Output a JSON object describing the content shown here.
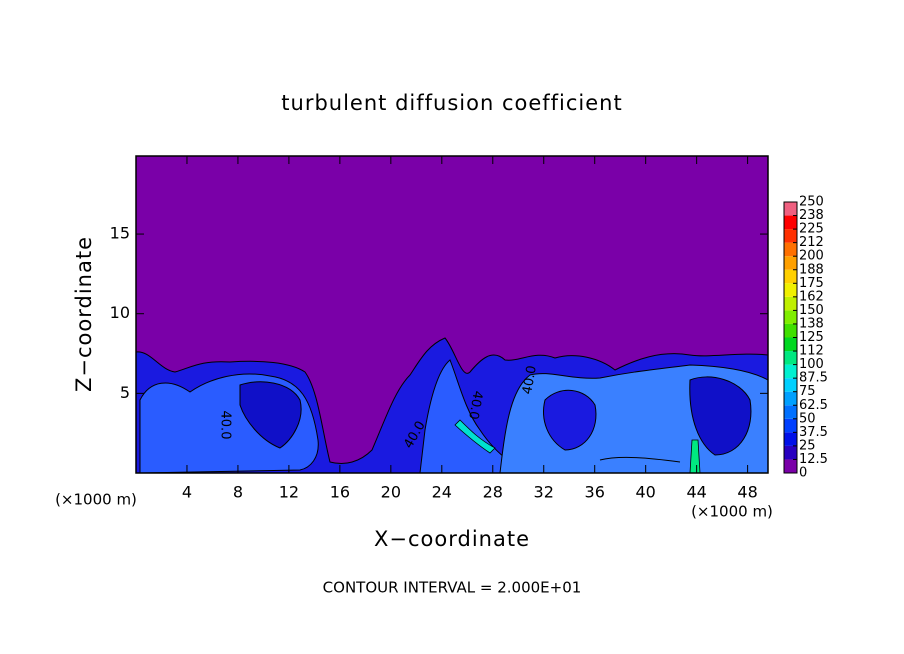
{
  "chart_data": {
    "type": "contour",
    "title": "turbulent diffusion coefficient",
    "x_label": "X−coordinate",
    "y_label": "Z−coordinate",
    "x_unit_left": "(×1000 m)",
    "x_unit_right": "(×1000 m)",
    "footer": "CONTOUR INTERVAL = 2.000E+01",
    "contour_labels": [
      "40.0",
      "40.0",
      "40.0",
      "40.0"
    ],
    "xlim": [
      0,
      49.6
    ],
    "xticks": [
      4,
      8,
      12,
      16,
      20,
      24,
      28,
      32,
      36,
      40,
      44,
      48
    ],
    "ylim": [
      0,
      19.9
    ],
    "yticks": [
      5,
      10,
      15
    ],
    "colorbar": {
      "lim": [
        0,
        250
      ],
      "ticks": [
        0,
        12.5,
        25,
        37.5,
        50,
        62.5,
        75,
        87.5,
        100,
        {
          "value": 112.5,
          "label": "112"
        },
        125,
        {
          "value": 137.5,
          "label": "138"
        },
        150,
        {
          "value": 162.5,
          "label": "162"
        },
        175,
        {
          "value": 187.5,
          "label": "188"
        },
        200,
        {
          "value": 212.5,
          "label": "212"
        },
        225,
        {
          "value": 237.5,
          "label": "238"
        },
        250
      ],
      "colors": [
        "#7a00a8",
        "#2800c0",
        "#0010e8",
        "#0040ff",
        "#0070ff",
        "#00a0ff",
        "#00d0ff",
        "#00f0d0",
        "#00e880",
        "#00d820",
        "#40e000",
        "#80ee00",
        "#c0f000",
        "#f0f000",
        "#ffd000",
        "#ffa000",
        "#ff7000",
        "#ff3000",
        "#ff0000",
        "#f06080"
      ]
    }
  }
}
